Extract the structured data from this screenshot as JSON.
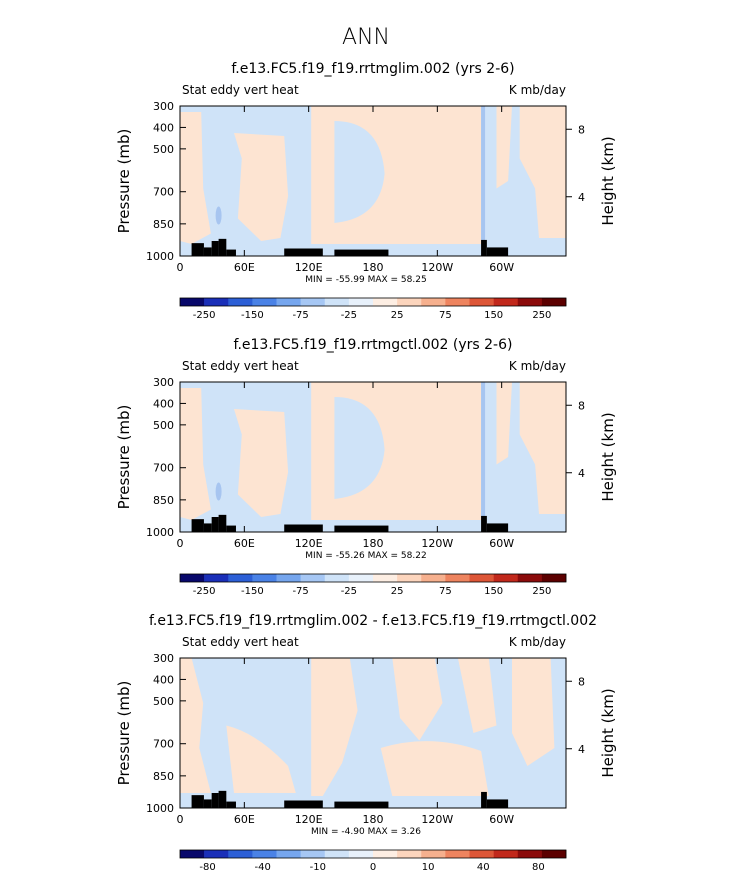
{
  "suptitle": "ANN",
  "colors": {
    "pos_light": "#fde4d2",
    "neg_light": "#cfe3f8",
    "neg_mid": "#a7c5f0",
    "terrain": "#000000",
    "colorbar": [
      "#08086b",
      "#1a2fb8",
      "#2c5fd6",
      "#4a82e6",
      "#76a6ee",
      "#a6c7f4",
      "#cfe3f8",
      "#e8f1fb",
      "#fdeee3",
      "#fcd5bd",
      "#f6b08e",
      "#ee845f",
      "#dd5637",
      "#c1281b",
      "#8b0b0b",
      "#5c0000"
    ]
  },
  "chart_data": [
    {
      "type": "contour",
      "title": "f.e13.FC5.f19_f19.rrtmglim.002 (yrs 2-6)",
      "left_label": "Stat eddy vert heat",
      "right_label": "K mb/day",
      "ylabel": "Pressure (mb)",
      "ylabel_right": "Height (km)",
      "yticks": [
        "300",
        "400",
        "500",
        "700",
        "850",
        "1000"
      ],
      "yticks_right": [
        "8",
        "4"
      ],
      "xticks": [
        "0",
        "60E",
        "120E",
        "180",
        "120W",
        "60W"
      ],
      "minmax": "MIN = -55.99   MAX = 58.25",
      "colorbar_labels": [
        "-250",
        "-150",
        "-75",
        "-25",
        "25",
        "75",
        "150",
        "250"
      ]
    },
    {
      "type": "contour",
      "title": "f.e13.FC5.f19_f19.rrtmgctl.002 (yrs 2-6)",
      "left_label": "Stat eddy vert heat",
      "right_label": "K mb/day",
      "ylabel": "Pressure (mb)",
      "ylabel_right": "Height (km)",
      "yticks": [
        "300",
        "400",
        "500",
        "700",
        "850",
        "1000"
      ],
      "yticks_right": [
        "8",
        "4"
      ],
      "xticks": [
        "0",
        "60E",
        "120E",
        "180",
        "120W",
        "60W"
      ],
      "minmax": "MIN = -55.26   MAX = 58.22",
      "colorbar_labels": [
        "-250",
        "-150",
        "-75",
        "-25",
        "25",
        "75",
        "150",
        "250"
      ]
    },
    {
      "type": "contour",
      "title": "f.e13.FC5.f19_f19.rrtmglim.002 - f.e13.FC5.f19_f19.rrtmgctl.002",
      "left_label": "Stat eddy vert heat",
      "right_label": "K mb/day",
      "ylabel": "Pressure (mb)",
      "ylabel_right": "Height (km)",
      "yticks": [
        "300",
        "400",
        "500",
        "700",
        "850",
        "1000"
      ],
      "yticks_right": [
        "8",
        "4"
      ],
      "xticks": [
        "0",
        "60E",
        "120E",
        "180",
        "120W",
        "60W"
      ],
      "minmax": "MIN = -4.90   MAX = 3.26",
      "colorbar_labels": [
        "-80",
        "-40",
        "-10",
        "0",
        "10",
        "40",
        "80"
      ]
    }
  ]
}
